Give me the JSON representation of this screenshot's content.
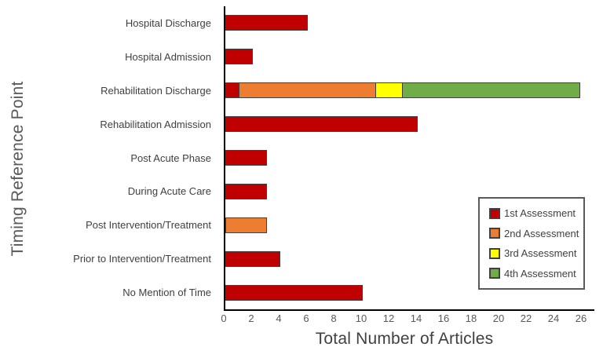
{
  "chart_data": {
    "type": "bar",
    "orientation": "horizontal",
    "stacked": true,
    "title": "",
    "xlabel": "Total Number of Articles",
    "ylabel": "Timing Reference Point",
    "xlim": [
      0,
      26
    ],
    "xticks": [
      0,
      2,
      4,
      6,
      8,
      10,
      12,
      14,
      16,
      18,
      20,
      22,
      24,
      26
    ],
    "grid": false,
    "legend_position": "right-middle",
    "categories": [
      "Hospital Discharge",
      "Hospital Admission",
      "Rehabilitation Discharge",
      "Rehabilitation Admission",
      "Post Acute Phase",
      "During Acute Care",
      "Post Intervention/Treatment",
      "Prior to Intervention/Treatment",
      "No Mention of Time"
    ],
    "series": [
      {
        "name": "1st Assessment",
        "color": "#C00000",
        "values": [
          6,
          2,
          1,
          14,
          3,
          3,
          0,
          4,
          10
        ]
      },
      {
        "name": "2nd Assessment",
        "color": "#ED7D31",
        "values": [
          0,
          0,
          10,
          0,
          0,
          0,
          3,
          0,
          0
        ]
      },
      {
        "name": "3rd Assessment",
        "color": "#FFFF00",
        "values": [
          0,
          0,
          2,
          0,
          0,
          0,
          0,
          0,
          0
        ]
      },
      {
        "name": "4th Assessment",
        "color": "#70AD47",
        "values": [
          0,
          0,
          13,
          0,
          0,
          0,
          0,
          0,
          0
        ]
      }
    ],
    "colors": {
      "bar_border": "#404040",
      "axis_line": "#000000",
      "text": "#595959"
    }
  }
}
